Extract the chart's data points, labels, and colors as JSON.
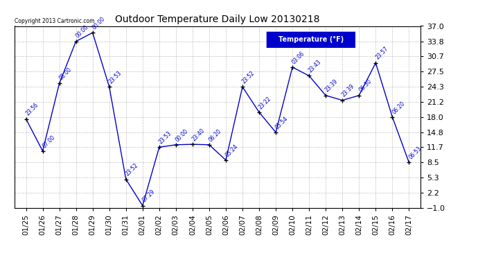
{
  "title": "Outdoor Temperature Daily Low 20130218",
  "copyright": "Copyright 2013 Cartronic.com",
  "legend_label": "Temperature (°F)",
  "ylim": [
    -1.0,
    37.0
  ],
  "yticks": [
    37.0,
    33.8,
    30.7,
    27.5,
    24.3,
    21.2,
    18.0,
    14.8,
    11.7,
    8.5,
    5.3,
    2.2,
    -1.0
  ],
  "dates": [
    "01/25",
    "01/26",
    "01/27",
    "01/28",
    "01/29",
    "01/30",
    "01/31",
    "02/01",
    "02/02",
    "02/03",
    "02/04",
    "02/05",
    "02/06",
    "02/07",
    "02/08",
    "02/09",
    "02/10",
    "02/11",
    "02/12",
    "02/13",
    "02/14",
    "02/15",
    "02/16",
    "02/17"
  ],
  "temps": [
    17.6,
    10.9,
    25.0,
    33.8,
    35.6,
    24.3,
    5.0,
    -0.5,
    11.7,
    12.2,
    12.3,
    12.2,
    9.0,
    24.3,
    19.0,
    14.8,
    28.4,
    26.6,
    22.5,
    21.5,
    22.5,
    29.3,
    18.0,
    8.5
  ],
  "time_labels": [
    "23:56",
    "07:00",
    "08:00",
    "00:00",
    "00:00",
    "23:53",
    "23:52",
    "07:29",
    "23:53",
    "00:00",
    "23:40",
    "06:20",
    "05:24",
    "23:52",
    "23:22",
    "05:54",
    "03:06",
    "23:43",
    "23:39",
    "23:39",
    "06:30",
    "23:57",
    "06:20",
    "06:53"
  ],
  "line_color": "#0000CC",
  "marker_color": "#000000",
  "bg_color": "#ffffff",
  "plot_bg_color": "#ffffff",
  "grid_color": "#999999",
  "text_color": "#0000CC",
  "title_color": "#000000",
  "legend_bg": "#0000CC",
  "legend_text": "#ffffff"
}
